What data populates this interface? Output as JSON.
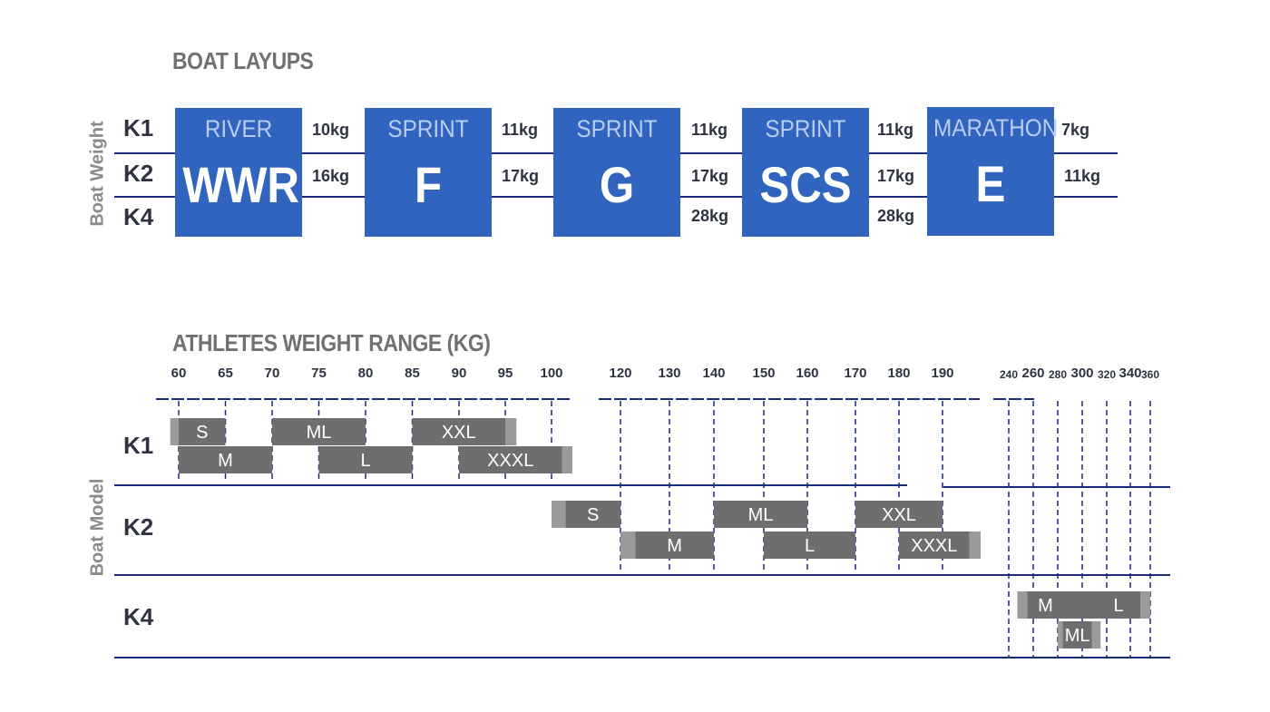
{
  "layups": {
    "title": "BOAT LAYUPS",
    "axis_label": "Boat Weight",
    "rows": [
      "K1",
      "K2",
      "K4"
    ],
    "boats": [
      {
        "category": "RIVER",
        "code": "WWR",
        "weights": [
          "10kg",
          "16kg",
          ""
        ]
      },
      {
        "category": "SPRINT",
        "code": "F",
        "weights": [
          "11kg",
          "17kg",
          ""
        ]
      },
      {
        "category": "SPRINT",
        "code": "G",
        "weights": [
          "11kg",
          "17kg",
          "28kg"
        ]
      },
      {
        "category": "SPRINT",
        "code": "SCS",
        "weights": [
          "11kg",
          "17kg",
          "28kg"
        ]
      },
      {
        "category": "MARATHON",
        "code": "E",
        "weights": [
          "7kg",
          "11kg",
          ""
        ]
      }
    ]
  },
  "chart_data": {
    "type": "range-bar",
    "title": "ATHLETES WEIGHT RANGE (KG)",
    "ylabel": "Boat Model",
    "colors": {
      "bar": "#6e6e6e",
      "extension": "#9a9a9a",
      "grid": "#1a2a7a"
    },
    "axis_groups": [
      {
        "ticks": [
          60,
          65,
          70,
          75,
          80,
          85,
          90,
          95,
          100
        ]
      },
      {
        "ticks": [
          120,
          130,
          140,
          150,
          160,
          170,
          180,
          190
        ]
      },
      {
        "ticks": [
          240,
          260,
          280,
          300,
          320,
          340,
          360
        ]
      }
    ],
    "rows": [
      {
        "model": "K1",
        "bars": [
          {
            "label": "S",
            "range": [
              60,
              65
            ],
            "ext": [
              58.5,
              60
            ],
            "lane": 0
          },
          {
            "label": "ML",
            "range": [
              70,
              80
            ],
            "lane": 0
          },
          {
            "label": "XXL",
            "range": [
              85,
              95
            ],
            "ext": [
              95,
              96.2
            ],
            "lane": 0
          },
          {
            "label": "M",
            "range": [
              60,
              70
            ],
            "lane": 1
          },
          {
            "label": "L",
            "range": [
              75,
              85
            ],
            "lane": 1
          },
          {
            "label": "XXXL",
            "range": [
              90,
              101.5
            ],
            "ext": [
              101.5,
              103
            ],
            "lane": 1
          }
        ]
      },
      {
        "model": "K2",
        "bars": [
          {
            "label": "S",
            "range": [
              102,
              120
            ],
            "ext": [
              100,
              102
            ],
            "lane": 0
          },
          {
            "label": "ML",
            "range": [
              140,
              160
            ],
            "lane": 0
          },
          {
            "label": "XXL",
            "range": [
              170,
              190
            ],
            "lane": 0
          },
          {
            "label": "M",
            "range": [
              123,
              140
            ],
            "ext": [
              120,
              123
            ],
            "lane": 1
          },
          {
            "label": "L",
            "range": [
              150,
              170
            ],
            "lane": 1
          },
          {
            "label": "XXXL",
            "range": [
              180,
              196
            ],
            "ext": [
              196,
              198.5
            ],
            "lane": 1
          }
        ]
      },
      {
        "model": "K4",
        "bars": [
          {
            "label": "M",
            "range": [
              255,
              300
            ],
            "ext": [
              247,
              255
            ],
            "lane": 0,
            "label_at": 270
          },
          {
            "label": "L",
            "range": [
              300,
              350
            ],
            "ext": [
              350,
              360
            ],
            "lane": 0,
            "label_at": 330
          },
          {
            "label": "ML",
            "range": [
              284,
              308
            ],
            "ext": [
              280,
              284
            ],
            "ext2": [
              308,
              315
            ],
            "lane": 1
          }
        ]
      }
    ]
  }
}
